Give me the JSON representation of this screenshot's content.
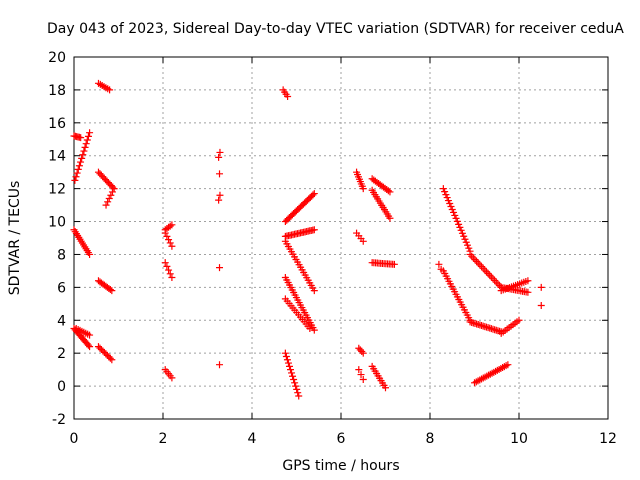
{
  "chart_data": {
    "type": "scatter",
    "title": "Day 043 of 2023, Sidereal Day-to-day VTEC variation (SDTVAR) for receiver ceduA",
    "xlabel": "GPS time / hours",
    "ylabel": "SDTVAR / TECUs",
    "xlim": [
      0,
      12
    ],
    "ylim": [
      -2,
      20
    ],
    "xticks": [
      "0",
      "2",
      "4",
      "6",
      "8",
      "10",
      "12"
    ],
    "yticks": [
      "-2",
      "0",
      "2",
      "4",
      "6",
      "8",
      "10",
      "12",
      "14",
      "16",
      "18",
      "20"
    ],
    "grid": true,
    "marker": "+",
    "color": "#ff0000",
    "segments": [
      {
        "x0": 0.0,
        "y0": 15.2,
        "x1": 0.15,
        "y1": 15.1,
        "n": 6
      },
      {
        "x0": 0.02,
        "y0": 12.5,
        "x1": 0.35,
        "y1": 15.4,
        "n": 14
      },
      {
        "x0": 0.0,
        "y0": 9.5,
        "x1": 0.35,
        "y1": 8.0,
        "n": 14
      },
      {
        "x0": 0.0,
        "y0": 3.5,
        "x1": 0.35,
        "y1": 2.4,
        "n": 14
      },
      {
        "x0": 0.05,
        "y0": 3.5,
        "x1": 0.35,
        "y1": 3.1,
        "n": 8
      },
      {
        "x0": 0.55,
        "y0": 18.4,
        "x1": 0.8,
        "y1": 18.0,
        "n": 7
      },
      {
        "x0": 0.55,
        "y0": 13.0,
        "x1": 0.9,
        "y1": 12.0,
        "n": 12
      },
      {
        "x0": 0.72,
        "y0": 11.0,
        "x1": 0.9,
        "y1": 12.0,
        "n": 6
      },
      {
        "x0": 0.55,
        "y0": 6.4,
        "x1": 0.85,
        "y1": 5.8,
        "n": 10
      },
      {
        "x0": 0.55,
        "y0": 2.4,
        "x1": 0.85,
        "y1": 1.6,
        "n": 10
      },
      {
        "x0": 2.05,
        "y0": 9.5,
        "x1": 2.2,
        "y1": 9.8,
        "n": 5
      },
      {
        "x0": 2.05,
        "y0": 9.3,
        "x1": 2.2,
        "y1": 8.5,
        "n": 5
      },
      {
        "x0": 2.05,
        "y0": 7.5,
        "x1": 2.2,
        "y1": 6.6,
        "n": 5
      },
      {
        "x0": 2.05,
        "y0": 1.0,
        "x1": 2.2,
        "y1": 0.5,
        "n": 5
      },
      {
        "x0": 3.25,
        "y0": 13.9,
        "x1": 3.28,
        "y1": 14.2,
        "n": 2
      },
      {
        "x0": 3.27,
        "y0": 12.9,
        "x1": 3.27,
        "y1": 12.9,
        "n": 1
      },
      {
        "x0": 3.25,
        "y0": 11.3,
        "x1": 3.28,
        "y1": 11.6,
        "n": 2
      },
      {
        "x0": 3.27,
        "y0": 7.2,
        "x1": 3.27,
        "y1": 7.2,
        "n": 1
      },
      {
        "x0": 3.27,
        "y0": 1.3,
        "x1": 3.27,
        "y1": 1.3,
        "n": 1
      },
      {
        "x0": 4.7,
        "y0": 18.0,
        "x1": 4.8,
        "y1": 17.6,
        "n": 4
      },
      {
        "x0": 4.75,
        "y0": 10.0,
        "x1": 5.4,
        "y1": 11.7,
        "n": 22
      },
      {
        "x0": 4.75,
        "y0": 9.1,
        "x1": 5.4,
        "y1": 9.5,
        "n": 20
      },
      {
        "x0": 4.75,
        "y0": 8.8,
        "x1": 5.4,
        "y1": 5.8,
        "n": 20
      },
      {
        "x0": 4.75,
        "y0": 6.6,
        "x1": 5.4,
        "y1": 3.4,
        "n": 22
      },
      {
        "x0": 4.75,
        "y0": 5.3,
        "x1": 5.3,
        "y1": 3.5,
        "n": 14
      },
      {
        "x0": 4.75,
        "y0": 2.0,
        "x1": 5.05,
        "y1": -0.6,
        "n": 14
      },
      {
        "x0": 6.35,
        "y0": 13.0,
        "x1": 6.5,
        "y1": 12.0,
        "n": 8
      },
      {
        "x0": 6.35,
        "y0": 9.3,
        "x1": 6.5,
        "y1": 8.8,
        "n": 4
      },
      {
        "x0": 6.4,
        "y0": 2.3,
        "x1": 6.5,
        "y1": 2.0,
        "n": 4
      },
      {
        "x0": 6.4,
        "y0": 1.0,
        "x1": 6.5,
        "y1": 0.4,
        "n": 3
      },
      {
        "x0": 6.7,
        "y0": 12.6,
        "x1": 7.1,
        "y1": 11.8,
        "n": 12
      },
      {
        "x0": 6.7,
        "y0": 11.9,
        "x1": 7.1,
        "y1": 10.2,
        "n": 14
      },
      {
        "x0": 6.7,
        "y0": 7.5,
        "x1": 7.2,
        "y1": 7.4,
        "n": 14
      },
      {
        "x0": 6.7,
        "y0": 1.2,
        "x1": 7.0,
        "y1": -0.1,
        "n": 10
      },
      {
        "x0": 8.2,
        "y0": 7.4,
        "x1": 8.25,
        "y1": 7.1,
        "n": 2
      },
      {
        "x0": 8.3,
        "y0": 12.0,
        "x1": 8.9,
        "y1": 8.2,
        "n": 22
      },
      {
        "x0": 8.9,
        "y0": 8.0,
        "x1": 9.6,
        "y1": 6.0,
        "n": 20
      },
      {
        "x0": 9.6,
        "y0": 6.0,
        "x1": 10.2,
        "y1": 5.7,
        "n": 16
      },
      {
        "x0": 8.3,
        "y0": 7.0,
        "x1": 8.9,
        "y1": 4.0,
        "n": 20
      },
      {
        "x0": 8.9,
        "y0": 3.9,
        "x1": 9.6,
        "y1": 3.3,
        "n": 20
      },
      {
        "x0": 9.6,
        "y0": 3.2,
        "x1": 10.0,
        "y1": 4.0,
        "n": 10
      },
      {
        "x0": 9.6,
        "y0": 5.8,
        "x1": 10.2,
        "y1": 6.4,
        "n": 14
      },
      {
        "x0": 9.0,
        "y0": 0.2,
        "x1": 9.75,
        "y1": 1.3,
        "n": 20
      },
      {
        "x0": 10.5,
        "y0": 6.0,
        "x1": 10.5,
        "y1": 6.0,
        "n": 1
      },
      {
        "x0": 10.5,
        "y0": 4.9,
        "x1": 10.5,
        "y1": 4.9,
        "n": 1
      }
    ]
  }
}
